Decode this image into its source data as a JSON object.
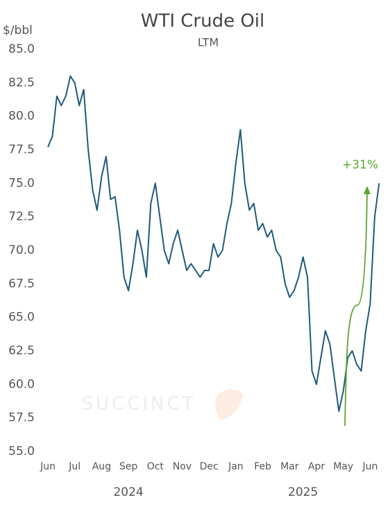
{
  "chart_data": {
    "type": "line",
    "title": "WTI Crude Oil",
    "subtitle": "LTM",
    "y_label": "$/bbl",
    "watermark": "SUCCINCT",
    "annotation": "+31%",
    "annotation_color": "#5aa532",
    "year_labels": [
      "2024",
      "2025"
    ],
    "categories": [
      "Jun",
      null,
      null,
      null,
      null,
      null,
      "Jul",
      null,
      null,
      null,
      null,
      null,
      "Aug",
      null,
      null,
      null,
      null,
      null,
      "Sep",
      null,
      null,
      null,
      null,
      null,
      "Oct",
      null,
      null,
      null,
      null,
      null,
      "Nov",
      null,
      null,
      null,
      null,
      null,
      "Dec",
      null,
      null,
      null,
      null,
      null,
      "Jan",
      null,
      null,
      null,
      null,
      null,
      "Feb",
      null,
      null,
      null,
      null,
      null,
      "Mar",
      null,
      null,
      null,
      null,
      null,
      "Apr",
      null,
      null,
      null,
      null,
      null,
      "May",
      null,
      null,
      null,
      null,
      null,
      "Jun",
      null,
      null
    ],
    "series": [
      {
        "name": "WTI",
        "color": "#1d5a7a",
        "values": [
          77.7,
          78.5,
          81.5,
          80.8,
          81.5,
          83.0,
          82.5,
          80.8,
          82.0,
          77.5,
          74.5,
          73.0,
          75.5,
          77.0,
          73.8,
          74.0,
          71.5,
          68.0,
          67.0,
          69.0,
          71.5,
          70.0,
          68.0,
          73.5,
          75.0,
          72.5,
          70.0,
          69.0,
          70.5,
          71.5,
          70.0,
          68.5,
          69.0,
          68.5,
          68.0,
          68.5,
          68.5,
          70.5,
          69.5,
          70.0,
          72.0,
          73.5,
          76.5,
          79.0,
          75.0,
          73.0,
          73.5,
          71.5,
          72.0,
          71.0,
          71.5,
          70.0,
          69.5,
          67.5,
          66.5,
          67.0,
          68.0,
          69.5,
          68.0,
          61.0,
          60.0,
          62.0,
          64.0,
          63.0,
          60.5,
          58.0,
          59.5,
          62.0,
          62.5,
          61.5,
          61.0,
          64.0,
          66.0,
          72.5,
          75.0
        ]
      }
    ],
    "ylim": [
      55,
      85
    ],
    "yticks": [
      {
        "value": 55,
        "label": "55.0"
      },
      {
        "value": 57.5,
        "label": "57.5"
      },
      {
        "value": 60,
        "label": "60.0"
      },
      {
        "value": 62.5,
        "label": "62.5"
      },
      {
        "value": 65,
        "label": "65.0"
      },
      {
        "value": 67.5,
        "label": "67.5"
      },
      {
        "value": 70,
        "label": "70.0"
      },
      {
        "value": 72.5,
        "label": "72.5"
      },
      {
        "value": 75,
        "label": "75.0"
      },
      {
        "value": 77.5,
        "label": "77.5"
      },
      {
        "value": 80,
        "label": "80.0"
      },
      {
        "value": 82.5,
        "label": "82.5"
      },
      {
        "value": 85,
        "label": "85.0"
      }
    ],
    "grid": false
  }
}
